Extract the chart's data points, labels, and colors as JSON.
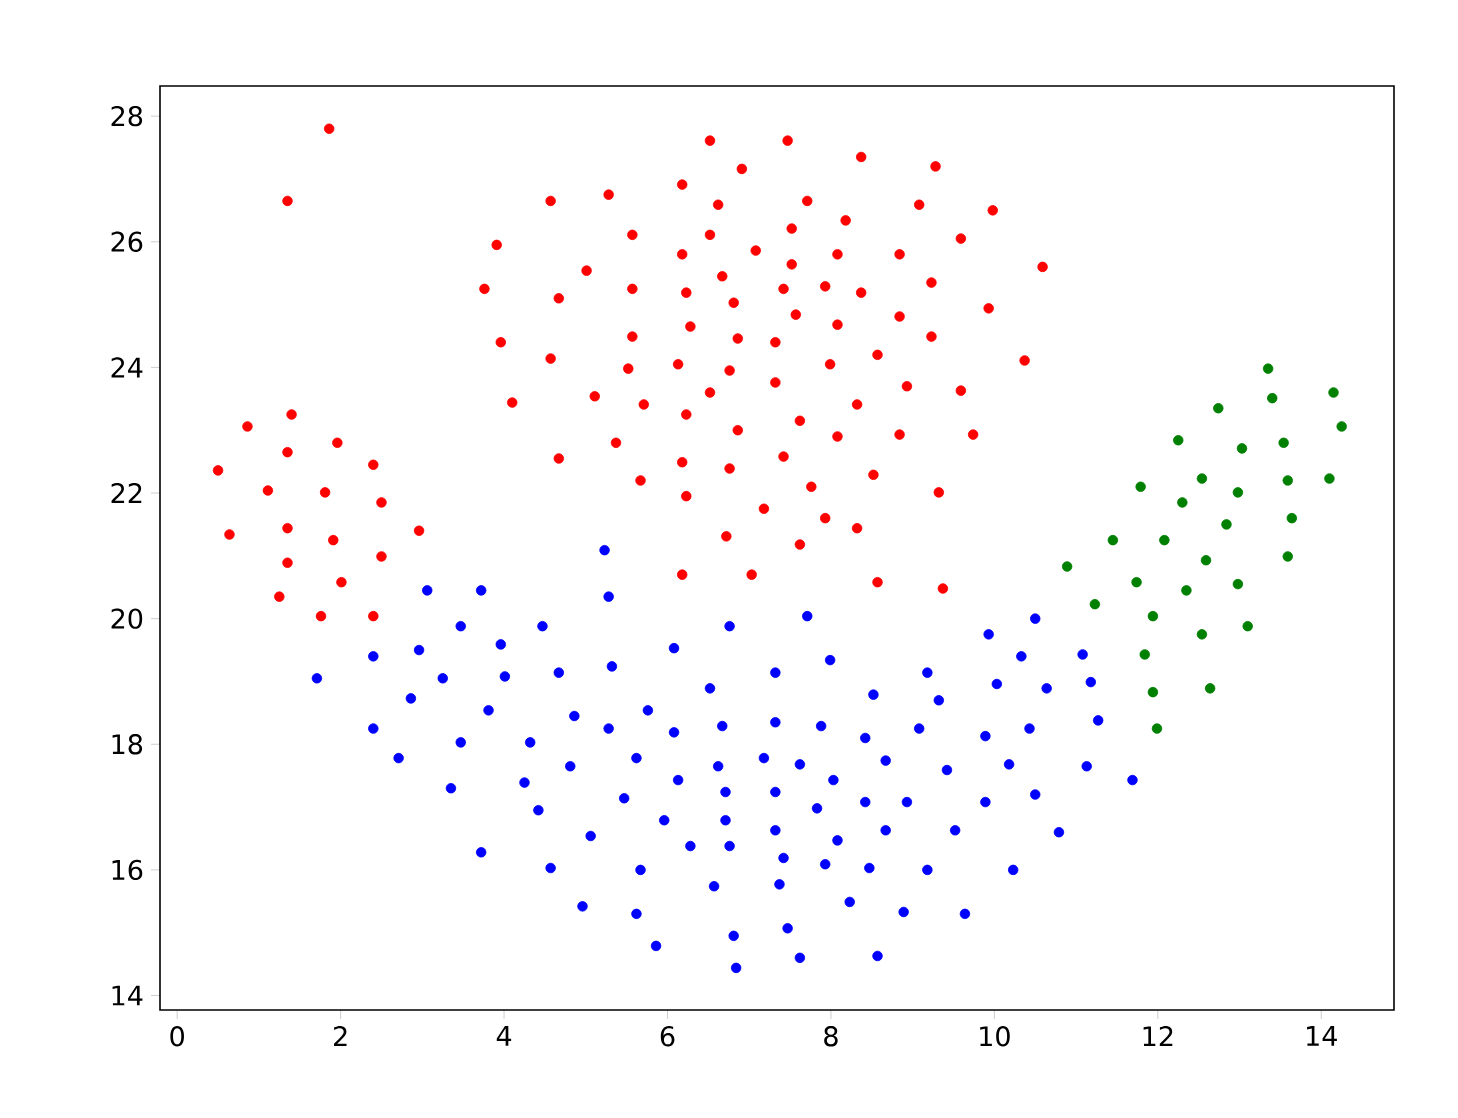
{
  "chart_data": {
    "type": "scatter",
    "xlim": [
      -0.21,
      14.89
    ],
    "ylim": [
      13.77,
      28.48
    ],
    "xticks": [
      0,
      2,
      4,
      6,
      8,
      10,
      12,
      14
    ],
    "yticks": [
      14,
      16,
      18,
      20,
      22,
      24,
      26,
      28
    ],
    "series": [
      {
        "color": "#ff0000",
        "x": [
          1.86,
          1.35,
          1.4,
          0.86,
          1.35,
          1.96,
          0.5,
          2.4,
          1.11,
          1.81,
          2.5,
          0.64,
          1.35,
          1.91,
          2.96,
          1.35,
          2.5,
          1.25,
          2.01,
          1.76,
          2.4,
          6.52,
          6.91,
          4.57,
          5.28,
          6.18,
          6.62,
          3.91,
          5.57,
          6.52,
          6.18,
          7.08,
          5.01,
          3.76,
          4.67,
          5.57,
          6.23,
          6.67,
          6.81,
          3.96,
          5.57,
          6.28,
          6.86,
          4.57,
          5.52,
          6.13,
          6.76,
          4.1,
          5.11,
          5.71,
          6.52,
          6.23,
          6.86,
          5.37,
          4.67,
          6.18,
          6.76,
          5.67,
          6.23,
          7.18,
          6.72,
          6.18,
          7.03,
          7.47,
          8.37,
          9.28,
          7.71,
          8.18,
          9.08,
          9.98,
          7.52,
          9.59,
          7.52,
          8.08,
          8.84,
          10.59,
          7.42,
          7.93,
          8.37,
          9.23,
          7.57,
          8.08,
          8.84,
          9.93,
          7.32,
          7.99,
          8.57,
          9.23,
          10.37,
          7.32,
          8.32,
          8.93,
          9.59,
          7.62,
          8.08,
          8.84,
          9.74,
          7.42,
          8.52,
          7.76,
          9.32,
          7.93,
          8.32,
          7.62,
          8.57,
          9.37
        ],
        "values": [
          27.8,
          26.65,
          23.25,
          23.06,
          22.65,
          22.8,
          22.36,
          22.45,
          22.04,
          22.01,
          21.85,
          21.34,
          21.44,
          21.25,
          21.4,
          20.89,
          20.99,
          20.35,
          20.58,
          20.04,
          20.04,
          27.61,
          27.16,
          26.65,
          26.75,
          26.91,
          26.59,
          25.95,
          26.11,
          26.11,
          25.8,
          25.86,
          25.54,
          25.25,
          25.1,
          25.25,
          25.19,
          25.45,
          25.03,
          24.4,
          24.49,
          24.65,
          24.46,
          24.14,
          23.98,
          24.05,
          23.95,
          23.44,
          23.54,
          23.41,
          23.6,
          23.25,
          23.0,
          22.8,
          22.55,
          22.49,
          22.39,
          22.2,
          21.95,
          21.75,
          21.31,
          20.7,
          20.7,
          27.61,
          27.35,
          27.2,
          26.65,
          26.34,
          26.59,
          26.5,
          26.21,
          26.05,
          25.64,
          25.8,
          25.8,
          25.6,
          25.25,
          25.29,
          25.19,
          25.35,
          24.84,
          24.68,
          24.81,
          24.94,
          24.4,
          24.05,
          24.2,
          24.49,
          24.11,
          23.76,
          23.41,
          23.7,
          23.63,
          23.15,
          22.9,
          22.93,
          22.93,
          22.58,
          22.29,
          22.1,
          22.01,
          21.6,
          21.44,
          21.18,
          20.58,
          20.48
        ]
      },
      {
        "color": "#0000ff",
        "x": [
          3.06,
          3.72,
          3.47,
          5.23,
          5.28,
          4.47,
          6.76,
          2.4,
          2.96,
          3.96,
          6.08,
          1.71,
          3.25,
          4.01,
          4.67,
          5.32,
          6.52,
          2.86,
          3.81,
          4.86,
          5.76,
          2.4,
          5.28,
          6.08,
          6.67,
          3.47,
          4.32,
          2.71,
          4.81,
          5.62,
          6.62,
          3.35,
          4.25,
          5.47,
          6.13,
          6.71,
          4.42,
          5.96,
          6.71,
          5.06,
          6.28,
          3.72,
          6.76,
          4.57,
          5.67,
          6.57,
          4.96,
          5.62,
          5.86,
          6.81,
          6.84,
          7.71,
          9.93,
          10.5,
          7.32,
          7.99,
          9.18,
          10.33,
          11.08,
          8.52,
          9.32,
          10.03,
          10.64,
          11.18,
          7.32,
          7.88,
          8.42,
          9.08,
          9.89,
          10.43,
          11.27,
          7.18,
          7.62,
          8.03,
          8.67,
          9.42,
          10.18,
          11.13,
          11.69,
          7.32,
          7.83,
          8.42,
          8.93,
          9.89,
          10.5,
          7.32,
          8.08,
          8.67,
          9.52,
          10.79,
          7.42,
          7.93,
          8.47,
          9.18,
          10.23,
          7.37,
          8.23,
          8.89,
          9.64,
          7.47,
          7.62,
          8.57
        ],
        "values": [
          20.45,
          20.45,
          19.88,
          21.09,
          20.35,
          19.88,
          19.88,
          19.4,
          19.5,
          19.59,
          19.53,
          19.05,
          19.05,
          19.08,
          19.14,
          19.24,
          18.89,
          18.73,
          18.54,
          18.45,
          18.54,
          18.25,
          18.25,
          18.19,
          18.29,
          18.03,
          18.03,
          17.78,
          17.65,
          17.78,
          17.65,
          17.3,
          17.39,
          17.14,
          17.43,
          17.24,
          16.95,
          16.79,
          16.79,
          16.54,
          16.38,
          16.28,
          16.38,
          16.03,
          16.0,
          15.74,
          15.42,
          15.3,
          14.79,
          14.95,
          14.44,
          20.04,
          19.75,
          20.0,
          19.14,
          19.34,
          19.14,
          19.4,
          19.43,
          18.79,
          18.7,
          18.96,
          18.89,
          18.99,
          18.35,
          18.29,
          18.1,
          18.25,
          18.13,
          18.25,
          18.38,
          17.78,
          17.68,
          17.43,
          17.74,
          17.59,
          17.68,
          17.65,
          17.43,
          17.24,
          16.98,
          17.08,
          17.08,
          17.08,
          17.2,
          16.63,
          16.47,
          16.63,
          16.63,
          16.6,
          16.19,
          16.09,
          16.03,
          16.0,
          16.0,
          15.77,
          15.49,
          15.33,
          15.3,
          15.07,
          14.6,
          14.63
        ]
      },
      {
        "color": "#008000",
        "x": [
          13.35,
          14.15,
          13.4,
          12.74,
          14.25,
          12.25,
          13.03,
          13.54,
          11.79,
          12.54,
          12.3,
          12.98,
          13.59,
          14.1,
          12.84,
          13.64,
          11.45,
          12.08,
          12.59,
          13.59,
          10.89,
          11.74,
          12.35,
          12.98,
          11.23,
          11.94,
          12.54,
          13.1,
          11.84,
          11.94,
          12.64,
          11.99
        ],
        "values": [
          23.98,
          23.6,
          23.51,
          23.35,
          23.06,
          22.84,
          22.71,
          22.8,
          22.1,
          22.23,
          21.85,
          22.01,
          22.2,
          22.23,
          21.5,
          21.6,
          21.25,
          21.25,
          20.93,
          20.99,
          20.83,
          20.58,
          20.45,
          20.55,
          20.23,
          20.04,
          19.75,
          19.88,
          19.43,
          18.83,
          18.89,
          18.25
        ]
      }
    ]
  }
}
